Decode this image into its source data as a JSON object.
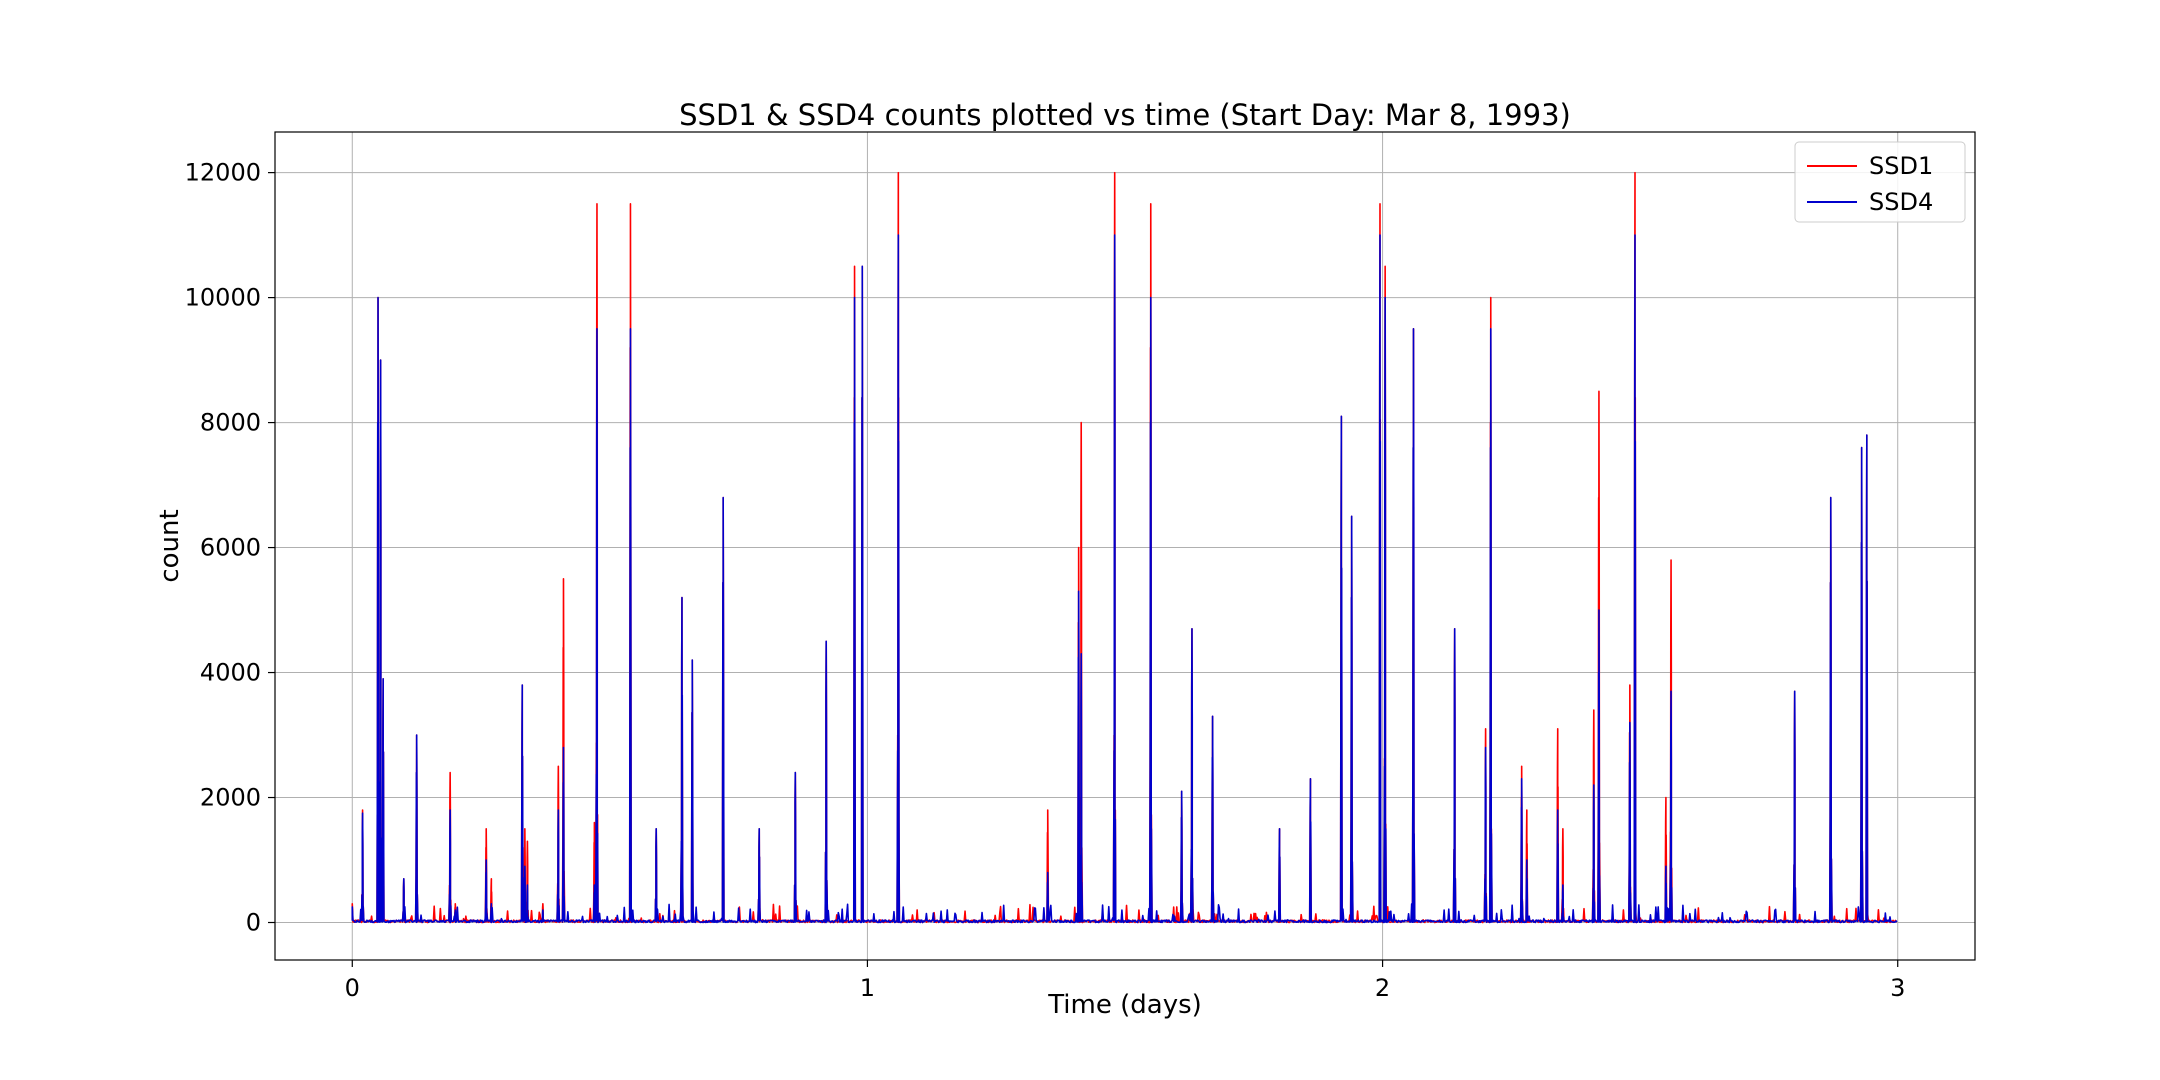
{
  "chart_data": {
    "type": "line",
    "title": "SSD1 & SSD4 counts plotted vs time (Start Day: Mar 8, 1993)",
    "xlabel": "Time (days)",
    "ylabel": "count",
    "xlim": [
      -0.15,
      3.15
    ],
    "ylim": [
      -600,
      12650
    ],
    "xticks": [
      0,
      1,
      2,
      3
    ],
    "xtick_labels": [
      "0",
      "1",
      "2",
      "3"
    ],
    "yticks": [
      0,
      2000,
      4000,
      6000,
      8000,
      10000,
      12000
    ],
    "ytick_labels": [
      "0",
      "2000",
      "4000",
      "6000",
      "8000",
      "10000",
      "12000"
    ],
    "grid": true,
    "legend_position": "top-right",
    "series": [
      {
        "name": "SSD1",
        "color": "#ff0000",
        "spikes": [
          [
            0.0,
            300
          ],
          [
            0.02,
            1800
          ],
          [
            0.05,
            10000
          ],
          [
            0.055,
            9000
          ],
          [
            0.06,
            3900
          ],
          [
            0.1,
            700
          ],
          [
            0.125,
            3000
          ],
          [
            0.19,
            2400
          ],
          [
            0.2,
            300
          ],
          [
            0.26,
            1500
          ],
          [
            0.27,
            700
          ],
          [
            0.33,
            3800
          ],
          [
            0.335,
            1500
          ],
          [
            0.34,
            1300
          ],
          [
            0.37,
            300
          ],
          [
            0.4,
            2500
          ],
          [
            0.41,
            5500
          ],
          [
            0.47,
            1600
          ],
          [
            0.475,
            11500
          ],
          [
            0.54,
            11500
          ],
          [
            0.59,
            1500
          ],
          [
            0.64,
            5200
          ],
          [
            0.66,
            4200
          ],
          [
            0.72,
            6800
          ],
          [
            0.79,
            1500
          ],
          [
            0.86,
            2400
          ],
          [
            0.92,
            4500
          ],
          [
            0.975,
            10500
          ],
          [
            0.99,
            10500
          ],
          [
            1.06,
            12000
          ],
          [
            1.35,
            1800
          ],
          [
            1.41,
            6000
          ],
          [
            1.415,
            8000
          ],
          [
            1.48,
            12000
          ],
          [
            1.55,
            11500
          ],
          [
            1.61,
            2100
          ],
          [
            1.63,
            4700
          ],
          [
            1.67,
            3300
          ],
          [
            1.8,
            1500
          ],
          [
            1.86,
            2300
          ],
          [
            1.92,
            8100
          ],
          [
            1.94,
            6500
          ],
          [
            1.995,
            11500
          ],
          [
            2.005,
            10500
          ],
          [
            2.06,
            9500
          ],
          [
            2.14,
            4700
          ],
          [
            2.2,
            3100
          ],
          [
            2.21,
            10000
          ],
          [
            2.27,
            2500
          ],
          [
            2.28,
            1800
          ],
          [
            2.34,
            3100
          ],
          [
            2.35,
            1500
          ],
          [
            2.41,
            3400
          ],
          [
            2.42,
            8500
          ],
          [
            2.48,
            3800
          ],
          [
            2.49,
            12000
          ],
          [
            2.55,
            2000
          ],
          [
            2.56,
            5800
          ],
          [
            2.8,
            3700
          ],
          [
            2.87,
            6800
          ],
          [
            2.93,
            7600
          ],
          [
            2.94,
            7800
          ]
        ]
      },
      {
        "name": "SSD4",
        "color": "#0000cc",
        "spikes": [
          [
            0.0,
            250
          ],
          [
            0.02,
            1750
          ],
          [
            0.05,
            10000
          ],
          [
            0.055,
            9000
          ],
          [
            0.06,
            3900
          ],
          [
            0.1,
            700
          ],
          [
            0.125,
            3000
          ],
          [
            0.19,
            1800
          ],
          [
            0.2,
            200
          ],
          [
            0.26,
            1000
          ],
          [
            0.27,
            300
          ],
          [
            0.33,
            3800
          ],
          [
            0.335,
            900
          ],
          [
            0.34,
            600
          ],
          [
            0.37,
            200
          ],
          [
            0.4,
            1800
          ],
          [
            0.41,
            2800
          ],
          [
            0.47,
            600
          ],
          [
            0.475,
            9500
          ],
          [
            0.54,
            9500
          ],
          [
            0.59,
            1500
          ],
          [
            0.64,
            5200
          ],
          [
            0.66,
            4200
          ],
          [
            0.72,
            6800
          ],
          [
            0.79,
            1500
          ],
          [
            0.86,
            2400
          ],
          [
            0.92,
            4500
          ],
          [
            0.975,
            10000
          ],
          [
            0.99,
            10500
          ],
          [
            1.06,
            11000
          ],
          [
            1.35,
            800
          ],
          [
            1.41,
            5300
          ],
          [
            1.415,
            4300
          ],
          [
            1.48,
            11000
          ],
          [
            1.55,
            10000
          ],
          [
            1.61,
            2100
          ],
          [
            1.63,
            4700
          ],
          [
            1.67,
            3300
          ],
          [
            1.8,
            1500
          ],
          [
            1.86,
            2300
          ],
          [
            1.92,
            8100
          ],
          [
            1.94,
            6500
          ],
          [
            1.995,
            11000
          ],
          [
            2.005,
            10000
          ],
          [
            2.06,
            9500
          ],
          [
            2.14,
            4700
          ],
          [
            2.2,
            2800
          ],
          [
            2.21,
            9500
          ],
          [
            2.27,
            2300
          ],
          [
            2.28,
            1000
          ],
          [
            2.34,
            1800
          ],
          [
            2.35,
            600
          ],
          [
            2.41,
            2200
          ],
          [
            2.42,
            5000
          ],
          [
            2.48,
            3200
          ],
          [
            2.49,
            11000
          ],
          [
            2.55,
            900
          ],
          [
            2.56,
            3700
          ],
          [
            2.8,
            3700
          ],
          [
            2.87,
            6800
          ],
          [
            2.93,
            7600
          ],
          [
            2.94,
            7800
          ]
        ]
      }
    ]
  }
}
